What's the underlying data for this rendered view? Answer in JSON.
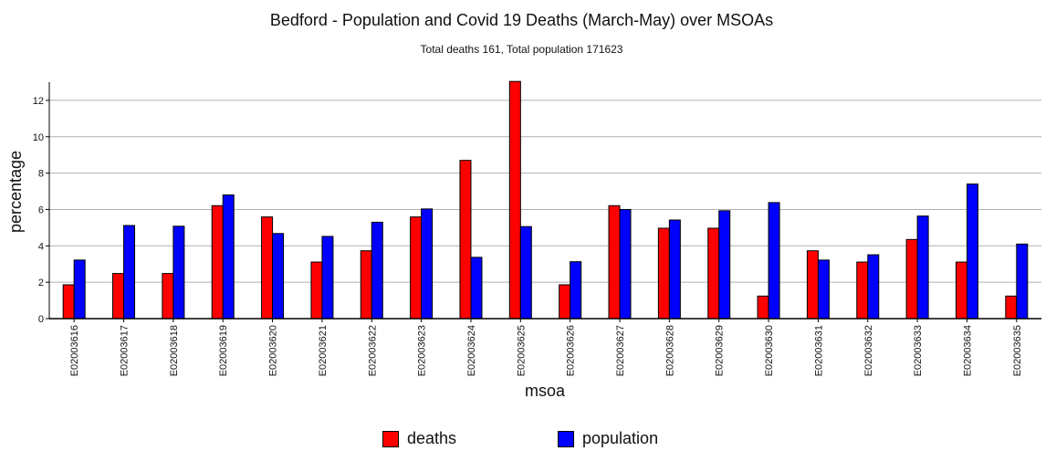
{
  "header": {
    "title": "Bedford - Population and Covid 19 Deaths (March-May) over MSOAs",
    "subtitle": "Total deaths 161, Total population 171623"
  },
  "colors": {
    "deaths": "#ff0000",
    "population": "#0000ff",
    "grid": "#b0b0b0"
  },
  "chart_data": {
    "type": "bar",
    "title": "Bedford - Population and Covid 19 Deaths (March-May) over MSOAs",
    "subtitle": "Total deaths 161, Total population 171623",
    "xlabel": "msoa",
    "ylabel": "percentage",
    "ylim": [
      0,
      13
    ],
    "yticks": [
      0,
      2,
      4,
      6,
      8,
      10,
      12
    ],
    "grid": "horizontal",
    "legend_position": "bottom",
    "categories": [
      "E02003616",
      "E02003617",
      "E02003618",
      "E02003619",
      "E02003620",
      "E02003621",
      "E02003622",
      "E02003623",
      "E02003624",
      "E02003625",
      "E02003626",
      "E02003627",
      "E02003628",
      "E02003629",
      "E02003630",
      "E02003631",
      "E02003632",
      "E02003633",
      "E02003634",
      "E02003635"
    ],
    "series": [
      {
        "name": "deaths",
        "color": "#ff0000",
        "values": [
          1.86,
          2.48,
          2.48,
          6.21,
          5.59,
          3.11,
          3.73,
          5.59,
          8.7,
          13.04,
          1.86,
          6.21,
          4.97,
          4.97,
          1.24,
          3.73,
          3.11,
          4.35,
          3.11,
          1.24
        ]
      },
      {
        "name": "population",
        "color": "#0000ff",
        "values": [
          3.22,
          5.12,
          5.08,
          6.8,
          4.68,
          4.52,
          5.3,
          6.03,
          3.37,
          5.06,
          3.13,
          6.0,
          5.42,
          5.93,
          6.38,
          3.22,
          3.51,
          5.64,
          7.4,
          4.1
        ]
      }
    ]
  }
}
